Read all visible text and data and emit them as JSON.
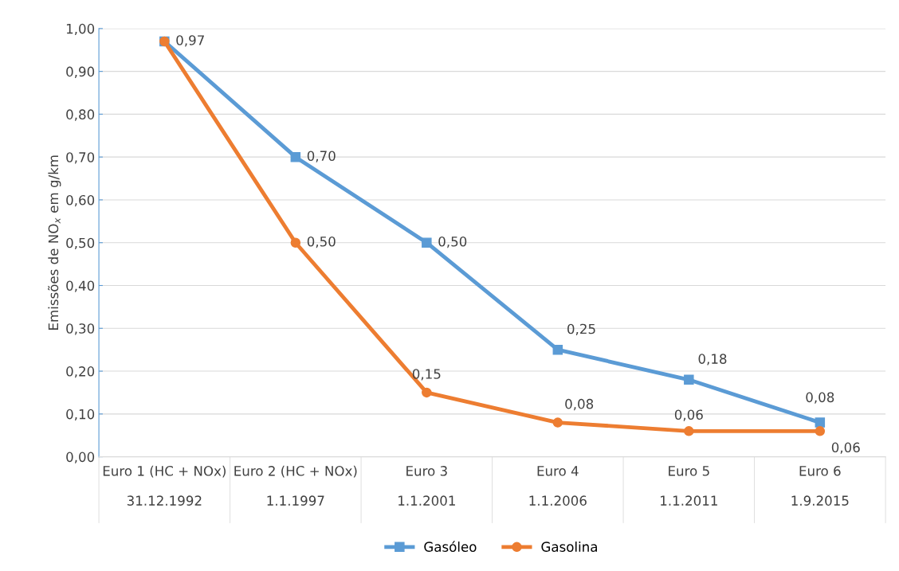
{
  "chart_data": {
    "type": "line",
    "ylabel": "Emissões de NO$_{x}$ em g/km",
    "categories": [
      "Euro 1 (HC + NOx)\n\n31.12.1992",
      "Euro 2 (HC + NOx)\n\n1.1.1997",
      "Euro 3\n\n1.1.2001",
      "Euro 4\n\n1.1.2006",
      "Euro 5\n\n1.1.2011",
      "Euro 6\n\n1.9.2015"
    ],
    "series": [
      {
        "name": "Gasóleo",
        "color": "#5b9bd5",
        "marker": "square",
        "values": [
          0.97,
          0.7,
          0.5,
          0.25,
          0.18,
          0.08
        ],
        "value_labels": [
          "0,97",
          "0,70",
          "0,50",
          "0,25",
          "0,18",
          "0,08"
        ]
      },
      {
        "name": "Gasolina",
        "color": "#ed7d31",
        "marker": "circle",
        "values": [
          0.97,
          0.5,
          0.15,
          0.08,
          0.06,
          0.06
        ],
        "value_labels": [
          null,
          "0,50",
          "0,15",
          "0,08",
          "0,06",
          "0,06"
        ]
      }
    ],
    "ylim": [
      0,
      1
    ],
    "yticks": [
      {
        "value": 0,
        "label": "0,00"
      },
      {
        "value": 0.1,
        "label": "0,10"
      },
      {
        "value": 0.2,
        "label": "0,20"
      },
      {
        "value": 0.3,
        "label": "0,30"
      },
      {
        "value": 0.4,
        "label": "0,40"
      },
      {
        "value": 0.5,
        "label": "0,50"
      },
      {
        "value": 0.6,
        "label": "0,60"
      },
      {
        "value": 0.7,
        "label": "0,70"
      },
      {
        "value": 0.8,
        "label": "0,80"
      },
      {
        "value": 0.9,
        "label": "0,90"
      },
      {
        "value": 1.0,
        "label": "1,00"
      }
    ],
    "grid": "y",
    "legend": "bottom",
    "line_style": "solid"
  }
}
